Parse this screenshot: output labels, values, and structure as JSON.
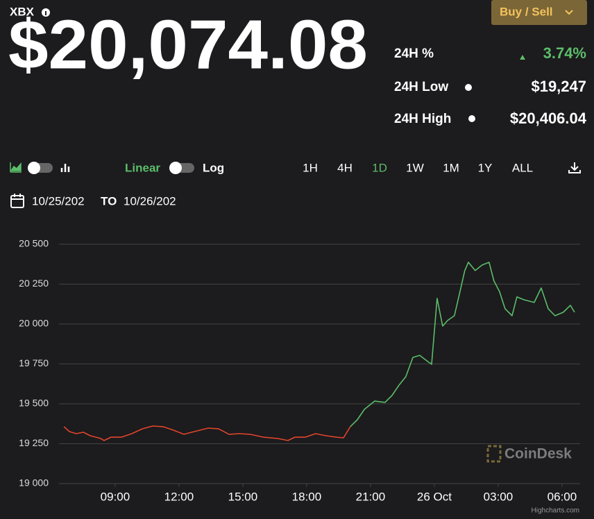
{
  "header": {
    "ticker": "XBX",
    "price": "$20,074.08",
    "button": "Buy / Sell"
  },
  "stats": [
    {
      "label": "24H %",
      "value": "3.74%"
    },
    {
      "label": "24H Low",
      "value": "$19,247"
    },
    {
      "label": "24H High",
      "value": "$20,406.04"
    }
  ],
  "controls": {
    "linear": "Linear",
    "log": "Log",
    "ranges": [
      "1H",
      "4H",
      "1D",
      "1W",
      "1M",
      "1Y",
      "ALL"
    ],
    "selected_range": "1D"
  },
  "date_range": {
    "from": "10/25/202",
    "to_label": "TO",
    "to": "10/26/202"
  },
  "watermark": "CoinDesk",
  "credit": "Highcharts.com",
  "chart_data": {
    "type": "line",
    "xlim": [
      6.36,
      30.85
    ],
    "ylim": [
      19000,
      20500
    ],
    "yticks": [
      {
        "value": 19000,
        "label": "19 000"
      },
      {
        "value": 19250,
        "label": "19 250"
      },
      {
        "value": 19500,
        "label": "19 500"
      },
      {
        "value": 19750,
        "label": "19 750"
      },
      {
        "value": 20000,
        "label": "20 000"
      },
      {
        "value": 20250,
        "label": "20 250"
      },
      {
        "value": 20500,
        "label": "20 500"
      }
    ],
    "xticks": [
      {
        "value": 9,
        "label": "09:00"
      },
      {
        "value": 12,
        "label": "12:00"
      },
      {
        "value": 15,
        "label": "15:00"
      },
      {
        "value": 18,
        "label": "18:00"
      },
      {
        "value": 21,
        "label": "21:00"
      },
      {
        "value": 24,
        "label": "26 Oct"
      },
      {
        "value": 27,
        "label": "03:00"
      },
      {
        "value": 30,
        "label": "06:00"
      }
    ],
    "grid": true,
    "series": [
      {
        "color": "#e0452c",
        "x": [
          6.59,
          6.85,
          7.17,
          7.5,
          7.83,
          8.32,
          8.48,
          8.8,
          9.29,
          9.78,
          10.27,
          10.76,
          11.25,
          11.74,
          12.23,
          12.72,
          13.37,
          13.86,
          14.35,
          14.84,
          15.33,
          15.98,
          16.63,
          17.12,
          17.44,
          17.93,
          18.42,
          18.91,
          19.4,
          19.73,
          20.05
        ],
        "values": [
          19357,
          19326,
          19313,
          19322,
          19300,
          19283,
          19270,
          19291,
          19291,
          19313,
          19343,
          19361,
          19357,
          19335,
          19309,
          19326,
          19348,
          19343,
          19309,
          19313,
          19309,
          19291,
          19283,
          19270,
          19291,
          19291,
          19313,
          19300,
          19291,
          19287,
          19357
        ]
      },
      {
        "color": "#5bbd6a",
        "x": [
          20.05,
          20.38,
          20.71,
          21.19,
          21.68,
          22.01,
          22.34,
          22.66,
          22.99,
          23.31,
          23.64,
          23.87,
          24.13,
          24.39,
          24.62,
          24.94,
          25.17,
          25.43,
          25.6,
          25.92,
          26.25,
          26.57,
          26.8,
          27.06,
          27.32,
          27.65,
          27.88,
          28.21,
          28.69,
          29.02,
          29.35,
          29.67,
          30.06,
          30.39,
          30.59
        ],
        "values": [
          19357,
          19400,
          19465,
          19517,
          19509,
          19552,
          19617,
          19670,
          19791,
          19804,
          19770,
          19748,
          20161,
          19987,
          20022,
          20052,
          20183,
          20335,
          20387,
          20335,
          20370,
          20387,
          20270,
          20204,
          20096,
          20052,
          20170,
          20152,
          20135,
          20226,
          20096,
          20052,
          20074,
          20117,
          20074
        ]
      }
    ]
  }
}
